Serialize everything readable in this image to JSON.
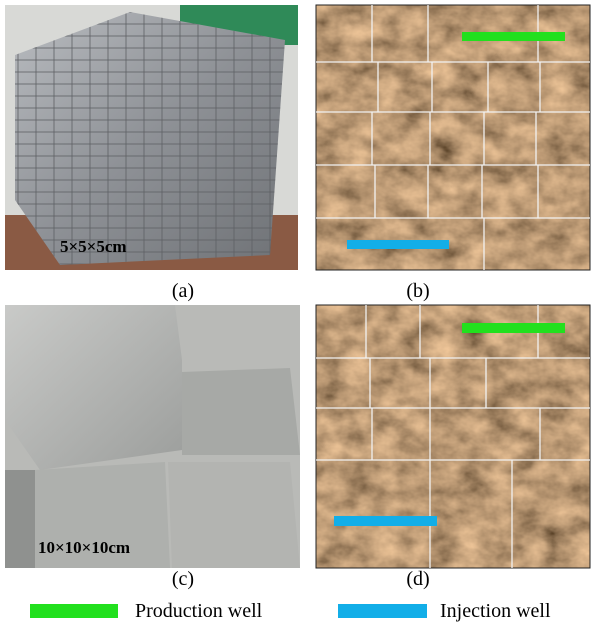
{
  "panels": [
    {
      "label": "(a)",
      "annotation": "5×5×5cm"
    },
    {
      "label": "(b)"
    },
    {
      "label": "(c)",
      "annotation": "10×10×10cm"
    },
    {
      "label": "(d)"
    }
  ],
  "legend": [
    {
      "label": "Production well",
      "color": "#22e01e"
    },
    {
      "label": "Injection well",
      "color": "#12aee8"
    }
  ]
}
